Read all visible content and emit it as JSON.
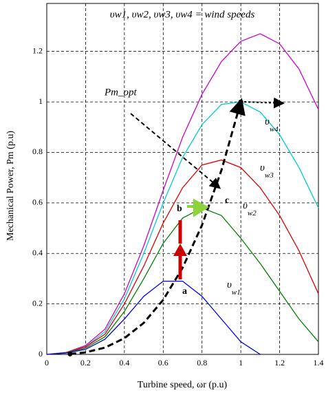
{
  "chart_data": {
    "type": "line",
    "annotation_top": "υw1, υw2, υw3, υw4 = wind speeds",
    "annotation_opt": "Pm_opt",
    "point_a": "a",
    "point_b": "b",
    "point_c": "c",
    "x_label": "Turbine speed, ωr (p.u)",
    "y_label": "Mechanical Power, Pm (p.u)",
    "x": [
      0,
      0.1,
      0.2,
      0.3,
      0.4,
      0.5,
      0.6,
      0.7,
      0.8,
      0.9,
      1.0,
      1.1,
      1.2,
      1.3,
      1.4
    ],
    "series": [
      {
        "color": "#cc00cc",
        "values": [
          0,
          0.008,
          0.035,
          0.1,
          0.24,
          0.43,
          0.65,
          0.86,
          1.03,
          1.16,
          1.24,
          1.27,
          1.23,
          1.13,
          0.97
        ]
      },
      {
        "name": "υw4",
        "color": "#00cccc",
        "values": [
          0,
          0.008,
          0.03,
          0.09,
          0.22,
          0.4,
          0.6,
          0.78,
          0.91,
          0.99,
          1.0,
          0.96,
          0.87,
          0.74,
          0.58
        ]
      },
      {
        "name": "υw3",
        "color": "#e00000",
        "values": [
          0,
          0.007,
          0.03,
          0.08,
          0.2,
          0.35,
          0.52,
          0.66,
          0.75,
          0.77,
          0.74,
          0.66,
          0.55,
          0.41,
          0.24
        ]
      },
      {
        "name": "υw2",
        "color": "#008000",
        "values": [
          0,
          0.006,
          0.025,
          0.07,
          0.17,
          0.3,
          0.44,
          0.54,
          0.58,
          0.55,
          0.46,
          0.36,
          0.25,
          0.14,
          0.05
        ]
      },
      {
        "name": "υw1",
        "color": "#0000dd",
        "values": [
          0,
          0.005,
          0.02,
          0.06,
          0.14,
          0.23,
          0.29,
          0.29,
          0.23,
          0.14,
          0.05,
          0,
          null,
          null,
          null
        ]
      }
    ],
    "optimal_curve": {
      "color": "#000000",
      "x": [
        0.12,
        0.2,
        0.3,
        0.4,
        0.5,
        0.6,
        0.7,
        0.8,
        0.9,
        1.0
      ],
      "values": [
        0.0017,
        0.008,
        0.027,
        0.064,
        0.125,
        0.216,
        0.343,
        0.512,
        0.729,
        1.0
      ]
    },
    "xlim": [
      0,
      1.4
    ],
    "xticks": [
      0,
      0.2,
      0.4,
      0.6,
      0.8,
      1,
      1.2,
      1.4
    ],
    "ylim": [
      0,
      1.39
    ],
    "yticks": [
      0,
      0.2,
      0.4,
      0.6,
      0.8,
      1,
      1.2
    ],
    "grid": true
  }
}
